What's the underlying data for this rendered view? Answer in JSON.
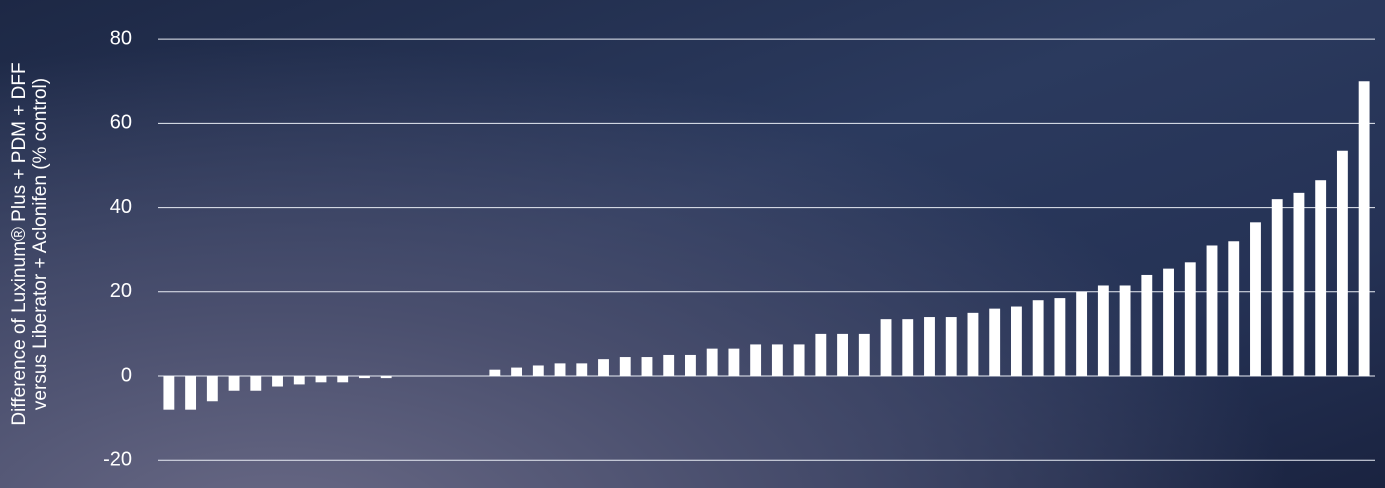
{
  "chart_data": {
    "type": "bar",
    "ylabel": [
      "Difference of Luxinum® Plus + PDM + DFF",
      "versus Liberator + Aclonifen (% control)"
    ],
    "categories": [
      null,
      null,
      null,
      null,
      null,
      null,
      null,
      null,
      null,
      null,
      null,
      null,
      null,
      null,
      null,
      null,
      null,
      null,
      null,
      null,
      null,
      null,
      null,
      null,
      null,
      null,
      null,
      null,
      null,
      null,
      null,
      null,
      null,
      null,
      null,
      null,
      null,
      null,
      null,
      null,
      null,
      null,
      null,
      null,
      null,
      null,
      null,
      null,
      null,
      null,
      null,
      null,
      null,
      null,
      null,
      null
    ],
    "values": [
      -8,
      -8,
      -6,
      -3.5,
      -3.5,
      -2.5,
      -2,
      -1.5,
      -1.5,
      -0.5,
      -0.5,
      0,
      0,
      0,
      0,
      1.5,
      2,
      2.5,
      3,
      3,
      4,
      4.5,
      4.5,
      5,
      5,
      6.5,
      6.5,
      7.5,
      7.5,
      7.5,
      10,
      10,
      10,
      13.5,
      13.5,
      14,
      14,
      15,
      16,
      16.5,
      18,
      18.5,
      20,
      21.5,
      21.5,
      24,
      25.5,
      27,
      31,
      32,
      36.5,
      42,
      43.5,
      46.5,
      53.5,
      70
    ],
    "color": "#ffffff",
    "ylim": [
      -26.6,
      89.3
    ],
    "yticks": [
      -20,
      0,
      20,
      40,
      60,
      80
    ],
    "grid": true
  }
}
